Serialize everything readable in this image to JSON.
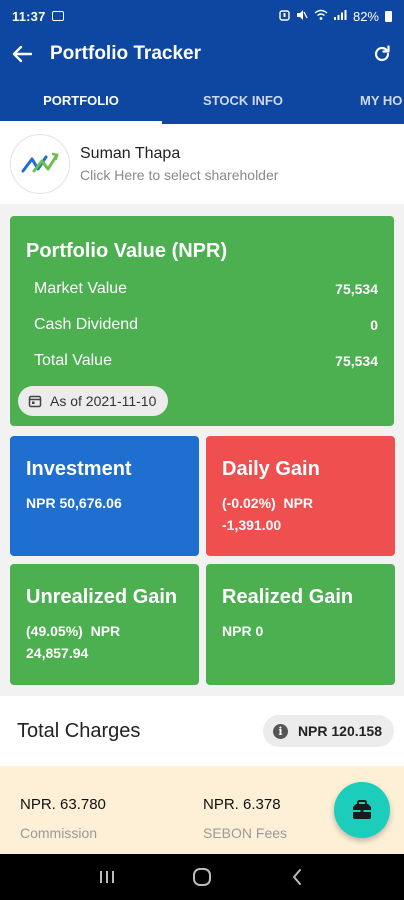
{
  "status_bar": {
    "time": "11:37",
    "battery": "82%"
  },
  "app_bar": {
    "title": "Portfolio Tracker"
  },
  "tabs": [
    {
      "label": "PORTFOLIO",
      "active": true
    },
    {
      "label": "STOCK INFO",
      "active": false
    },
    {
      "label": "MY HO",
      "active": false
    }
  ],
  "shareholder": {
    "name": "Suman Thapa",
    "hint": "Click Here to select shareholder"
  },
  "portfolio_value": {
    "title": "Portfolio Value (NPR)",
    "rows": [
      {
        "label": "Market Value",
        "value": "75,534"
      },
      {
        "label": "Cash Dividend",
        "value": "0"
      },
      {
        "label": "Total Value",
        "value": "75,534"
      }
    ],
    "as_of": "As of 2021-11-10"
  },
  "investment": {
    "title": "Investment",
    "value": "NPR 50,676.06"
  },
  "daily_gain": {
    "title": "Daily Gain",
    "line1": "(-0.02%)  NPR",
    "line2": "-1,391.00"
  },
  "unrealized_gain": {
    "title": "Unrealized Gain",
    "line1": "(49.05%)  NPR",
    "line2": "24,857.94"
  },
  "realized_gain": {
    "title": "Realized Gain",
    "value": "NPR 0"
  },
  "total_charges": {
    "title": "Total Charges",
    "value": "NPR 120.158"
  },
  "fees": [
    {
      "value": "NPR. 63.780",
      "label": "Commission"
    },
    {
      "value": "NPR. 6.378",
      "label": "SEBON Fees"
    }
  ],
  "colors": {
    "primary": "#0d47a1",
    "green_card": "#4caf50",
    "blue_card": "#1f6fd0",
    "red_card": "#ef4f4f",
    "fab": "#1ccdbb",
    "fees_bg": "#fdf0d7"
  }
}
